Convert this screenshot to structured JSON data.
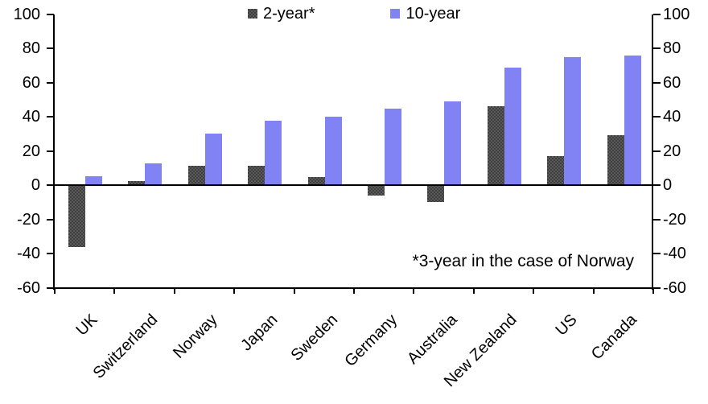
{
  "chart_data": {
    "type": "bar",
    "title": "",
    "categories": [
      "UK",
      "Switzerland",
      "Norway",
      "Japan",
      "Sweden",
      "Germany",
      "Australia",
      "New Zealand",
      "US",
      "Canada"
    ],
    "series": [
      {
        "name": "2-year*",
        "color": "#3e3e3e",
        "pattern": "checker",
        "values": [
          -36,
          2.5,
          11.5,
          11.5,
          4.5,
          -6,
          -10,
          46,
          17,
          29
        ]
      },
      {
        "name": "10-year",
        "color": "#8183f4",
        "pattern": "solid",
        "values": [
          5,
          12.5,
          30,
          37.5,
          40,
          44.5,
          49,
          68.5,
          75,
          76
        ]
      }
    ],
    "ylim": [
      -60,
      100
    ],
    "yticks": [
      100,
      80,
      60,
      40,
      20,
      0,
      -20,
      -40,
      -60
    ],
    "grid": false,
    "dual_axis": true,
    "legend_position": "top-center",
    "annotation": "*3-year in the case of Norway"
  }
}
